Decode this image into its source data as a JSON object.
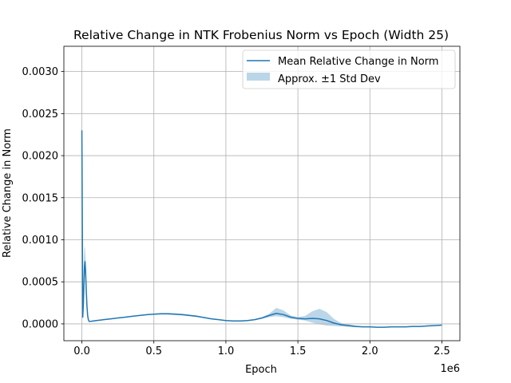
{
  "chart_data": {
    "type": "line",
    "title": "Relative Change in NTK Frobenius Norm vs Epoch (Width 25)",
    "xlabel": "Epoch",
    "ylabel": "Relative Change in Norm",
    "x_offset_label": "1e6",
    "xlim": [
      -125000,
      2625000
    ],
    "ylim": [
      -0.0002,
      0.0033
    ],
    "xticks": [
      0,
      500000,
      1000000,
      1500000,
      2000000,
      2500000
    ],
    "xtick_labels": [
      "0.0",
      "0.5",
      "1.0",
      "1.5",
      "2.0",
      "2.5"
    ],
    "yticks": [
      0,
      0.0005,
      0.001,
      0.0015,
      0.002,
      0.0025,
      0.003
    ],
    "ytick_labels": [
      "0.0000",
      "0.0005",
      "0.0010",
      "0.0015",
      "0.0020",
      "0.0025",
      "0.0030"
    ],
    "grid": true,
    "legend_position": "top-right",
    "colors": {
      "line": "#1f77b4",
      "band": "#1f77b4",
      "grid": "#b0b0b0"
    },
    "series": [
      {
        "name": "Mean Relative Change in Norm",
        "kind": "line",
        "x": [
          0,
          3000,
          6000,
          10000,
          14000,
          18000,
          22000,
          26000,
          30000,
          35000,
          40000,
          45000,
          50000,
          60000,
          80000,
          100000,
          150000,
          200000,
          250000,
          300000,
          350000,
          400000,
          450000,
          500000,
          550000,
          600000,
          650000,
          700000,
          750000,
          800000,
          850000,
          900000,
          950000,
          1000000,
          1050000,
          1100000,
          1150000,
          1200000,
          1250000,
          1300000,
          1350000,
          1400000,
          1450000,
          1500000,
          1550000,
          1600000,
          1650000,
          1700000,
          1750000,
          1800000,
          1850000,
          1900000,
          1950000,
          2000000,
          2050000,
          2100000,
          2150000,
          2200000,
          2250000,
          2300000,
          2350000,
          2400000,
          2450000,
          2500000
        ],
        "y": [
          0.0023,
          0.0012,
          8e-05,
          0.00022,
          0.00045,
          0.00068,
          0.00074,
          0.00062,
          0.00042,
          0.00022,
          0.0001,
          5e-05,
          3e-05,
          3e-05,
          3.5e-05,
          4e-05,
          5e-05,
          6e-05,
          7e-05,
          8e-05,
          9e-05,
          0.0001,
          0.00011,
          0.000115,
          0.00012,
          0.00012,
          0.000115,
          0.00011,
          0.0001,
          9e-05,
          7.5e-05,
          6e-05,
          5e-05,
          4e-05,
          3.5e-05,
          3.5e-05,
          4e-05,
          5e-05,
          7e-05,
          0.0001,
          0.000125,
          0.00011,
          8e-05,
          6.5e-05,
          6e-05,
          6.5e-05,
          6e-05,
          4e-05,
          1e-05,
          -1e-05,
          -2e-05,
          -3e-05,
          -3.5e-05,
          -3.5e-05,
          -4e-05,
          -4e-05,
          -3.5e-05,
          -3.5e-05,
          -3.5e-05,
          -3e-05,
          -3e-05,
          -2.5e-05,
          -2e-05,
          -1.5e-05
        ]
      },
      {
        "name": "Approx. ±1 Std Dev",
        "kind": "band",
        "x": [
          0,
          3000,
          6000,
          10000,
          14000,
          18000,
          22000,
          26000,
          30000,
          35000,
          40000,
          45000,
          50000,
          60000,
          80000,
          100000,
          150000,
          200000,
          250000,
          300000,
          350000,
          400000,
          450000,
          500000,
          550000,
          600000,
          650000,
          700000,
          750000,
          800000,
          850000,
          900000,
          950000,
          1000000,
          1050000,
          1100000,
          1150000,
          1200000,
          1250000,
          1300000,
          1350000,
          1400000,
          1450000,
          1500000,
          1550000,
          1600000,
          1650000,
          1700000,
          1750000,
          1800000,
          1850000,
          1900000,
          1950000,
          2000000,
          2050000,
          2100000,
          2150000,
          2200000,
          2250000,
          2300000,
          2350000,
          2400000,
          2450000,
          2500000
        ],
        "lower": [
          0.0023,
          0.0011,
          5e-05,
          0.00012,
          0.00035,
          0.00055,
          0.00062,
          0.00052,
          0.00034,
          0.00017,
          8e-05,
          4e-05,
          2.5e-05,
          2.5e-05,
          3e-05,
          3.5e-05,
          4.5e-05,
          5.5e-05,
          6.5e-05,
          7.5e-05,
          8.5e-05,
          9.5e-05,
          0.000105,
          0.00011,
          0.000112,
          0.00011,
          0.000105,
          0.0001,
          9e-05,
          8e-05,
          6.8e-05,
          5.5e-05,
          4.5e-05,
          3.6e-05,
          3.2e-05,
          3.2e-05,
          3.6e-05,
          4.4e-05,
          6e-05,
          8e-05,
          9e-05,
          8e-05,
          6e-05,
          5e-05,
          4e-05,
          1.5e-05,
          -5e-06,
          -2e-05,
          -2.5e-05,
          -3e-05,
          -3.5e-05,
          -4e-05,
          -4e-05,
          -4e-05,
          -4.2e-05,
          -4.2e-05,
          -4e-05,
          -4e-05,
          -4e-05,
          -3.5e-05,
          -3.5e-05,
          -3e-05,
          -2.5e-05,
          -2e-05
        ],
        "upper": [
          0.0023,
          0.0013,
          0.0002,
          0.00045,
          0.00078,
          0.00092,
          0.0009,
          0.00076,
          0.00052,
          0.00028,
          0.00013,
          6e-05,
          3.5e-05,
          3.5e-05,
          4e-05,
          4.5e-05,
          5.5e-05,
          6.5e-05,
          7.5e-05,
          8.5e-05,
          9.5e-05,
          0.000105,
          0.000115,
          0.000122,
          0.00013,
          0.00013,
          0.000125,
          0.00012,
          0.00011,
          0.0001,
          8.2e-05,
          6.5e-05,
          5.5e-05,
          4.4e-05,
          3.8e-05,
          3.8e-05,
          4.4e-05,
          5.6e-05,
          8e-05,
          0.00012,
          0.00019,
          0.00016,
          0.0001,
          8e-05,
          9.5e-05,
          0.00015,
          0.00018,
          0.00014,
          6e-05,
          1e-05,
          -5e-06,
          -2e-05,
          -3e-05,
          -3e-05,
          -3.5e-05,
          -3.5e-05,
          -3e-05,
          -3e-05,
          -3e-05,
          -2.5e-05,
          -2.5e-05,
          -2e-05,
          -1.5e-05,
          -1e-05
        ]
      }
    ]
  }
}
